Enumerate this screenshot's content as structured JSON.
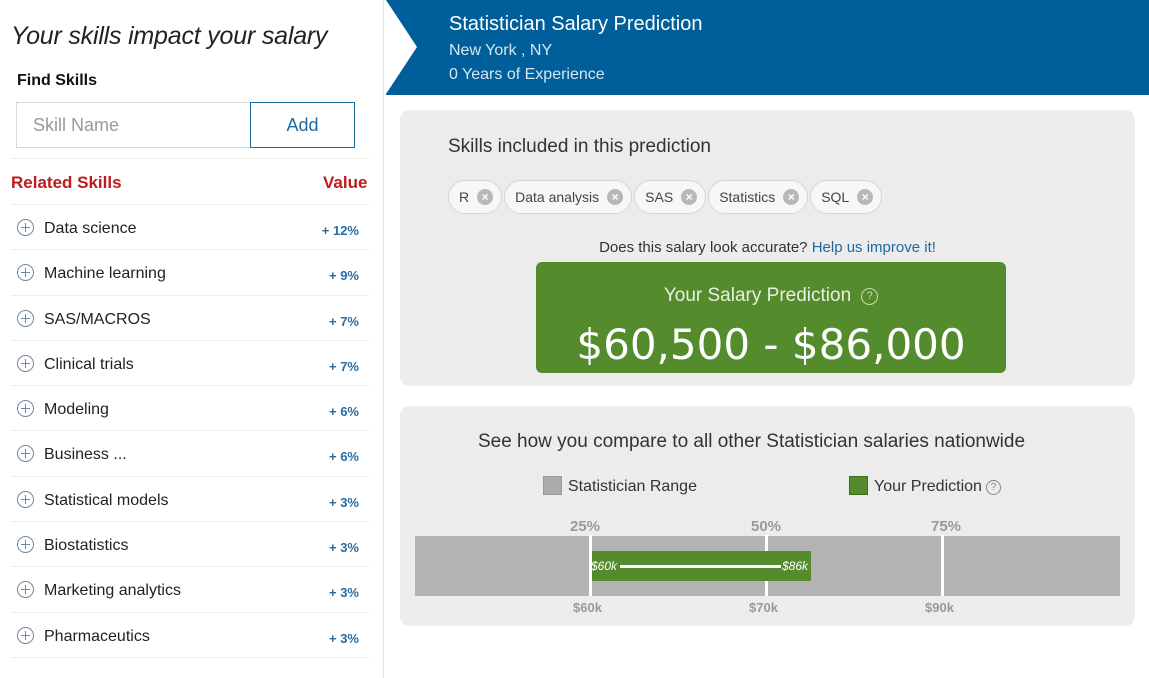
{
  "left": {
    "title": "Your skills impact your salary",
    "find_label": "Find Skills",
    "input_placeholder": "Skill Name",
    "add_label": "Add",
    "related_header": "Related Skills",
    "value_header": "Value",
    "skills": [
      {
        "name": "Data science",
        "value": "+ 12%"
      },
      {
        "name": "Machine learning",
        "value": "+ 9%"
      },
      {
        "name": "SAS/MACROS",
        "value": "+ 7%"
      },
      {
        "name": "Clinical trials",
        "value": "+ 7%"
      },
      {
        "name": "Modeling",
        "value": "+ 6%"
      },
      {
        "name": "Business ...",
        "value": "+ 6%"
      },
      {
        "name": "Statistical models",
        "value": "+ 3%"
      },
      {
        "name": "Biostatistics",
        "value": "+ 3%"
      },
      {
        "name": "Marketing analytics",
        "value": "+ 3%"
      },
      {
        "name": "Pharmaceutics",
        "value": "+ 3%"
      }
    ]
  },
  "header": {
    "title": "Statistician Salary Prediction",
    "location": "New York , NY",
    "experience": "0 Years of Experience"
  },
  "prediction": {
    "title": "Skills included in this prediction",
    "chips": [
      "R",
      "Data analysis",
      "SAS",
      "Statistics",
      "SQL"
    ],
    "accuracy_text": "Does this salary look accurate?",
    "accuracy_link": "Help us improve it!",
    "label": "Your Salary Prediction",
    "value": "$60,500 - $86,000"
  },
  "compare": {
    "title": "See how you compare to all other Statistician salaries nationwide",
    "legend_range": "Statistician Range",
    "legend_prediction": "Your Prediction",
    "percentiles": [
      "25%",
      "50%",
      "75%"
    ],
    "salary_ticks": [
      "$60k",
      "$70k",
      "$90k"
    ],
    "bar_low_label": "$60k",
    "bar_high_label": "$86k",
    "prediction_low": 60500,
    "prediction_high": 86000
  },
  "colors": {
    "header_bg": "#005f9a",
    "green": "#548b2d",
    "red": "#c0191e",
    "link": "#1d6a9e"
  }
}
